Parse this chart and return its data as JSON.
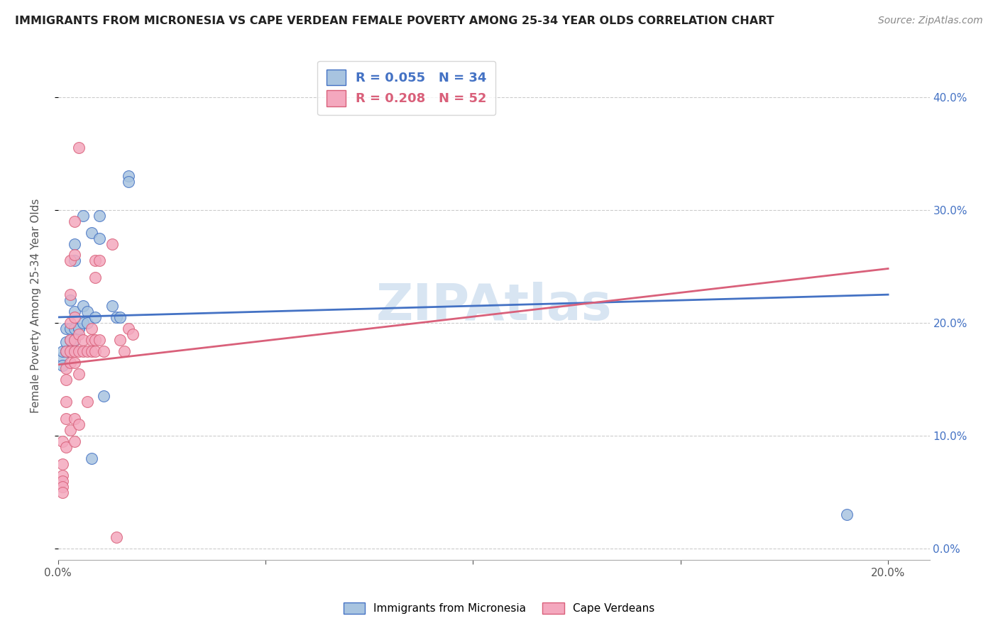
{
  "title": "IMMIGRANTS FROM MICRONESIA VS CAPE VERDEAN FEMALE POVERTY AMONG 25-34 YEAR OLDS CORRELATION CHART",
  "source": "Source: ZipAtlas.com",
  "ylabel": "Female Poverty Among 25-34 Year Olds",
  "xlim": [
    0.0,
    0.21
  ],
  "ylim": [
    -0.01,
    0.44
  ],
  "y_ticks": [
    0.0,
    0.1,
    0.2,
    0.3,
    0.4
  ],
  "blue_label": "Immigrants from Micronesia",
  "pink_label": "Cape Verdeans",
  "blue_R": 0.055,
  "blue_N": 34,
  "pink_R": 0.208,
  "pink_N": 52,
  "blue_color": "#a8c4e0",
  "pink_color": "#f4a8be",
  "blue_line_color": "#4472c4",
  "pink_line_color": "#d9607a",
  "watermark": "ZIPAtlas",
  "blue_line": [
    [
      0.0,
      0.205
    ],
    [
      0.2,
      0.225
    ]
  ],
  "pink_line": [
    [
      0.0,
      0.163
    ],
    [
      0.2,
      0.248
    ]
  ],
  "blue_points": [
    [
      0.001,
      0.17
    ],
    [
      0.001,
      0.162
    ],
    [
      0.001,
      0.175
    ],
    [
      0.002,
      0.195
    ],
    [
      0.002,
      0.183
    ],
    [
      0.002,
      0.175
    ],
    [
      0.003,
      0.22
    ],
    [
      0.003,
      0.195
    ],
    [
      0.003,
      0.185
    ],
    [
      0.004,
      0.27
    ],
    [
      0.004,
      0.255
    ],
    [
      0.004,
      0.21
    ],
    [
      0.004,
      0.195
    ],
    [
      0.004,
      0.185
    ],
    [
      0.004,
      0.185
    ],
    [
      0.005,
      0.195
    ],
    [
      0.005,
      0.195
    ],
    [
      0.006,
      0.295
    ],
    [
      0.006,
      0.215
    ],
    [
      0.006,
      0.2
    ],
    [
      0.007,
      0.21
    ],
    [
      0.007,
      0.2
    ],
    [
      0.008,
      0.28
    ],
    [
      0.008,
      0.08
    ],
    [
      0.009,
      0.205
    ],
    [
      0.01,
      0.295
    ],
    [
      0.01,
      0.275
    ],
    [
      0.011,
      0.135
    ],
    [
      0.013,
      0.215
    ],
    [
      0.014,
      0.205
    ],
    [
      0.015,
      0.205
    ],
    [
      0.017,
      0.33
    ],
    [
      0.017,
      0.325
    ],
    [
      0.19,
      0.03
    ]
  ],
  "pink_points": [
    [
      0.001,
      0.095
    ],
    [
      0.001,
      0.075
    ],
    [
      0.001,
      0.065
    ],
    [
      0.001,
      0.06
    ],
    [
      0.001,
      0.055
    ],
    [
      0.001,
      0.05
    ],
    [
      0.002,
      0.175
    ],
    [
      0.002,
      0.16
    ],
    [
      0.002,
      0.15
    ],
    [
      0.002,
      0.13
    ],
    [
      0.002,
      0.115
    ],
    [
      0.002,
      0.09
    ],
    [
      0.003,
      0.255
    ],
    [
      0.003,
      0.225
    ],
    [
      0.003,
      0.2
    ],
    [
      0.003,
      0.185
    ],
    [
      0.003,
      0.175
    ],
    [
      0.003,
      0.165
    ],
    [
      0.003,
      0.105
    ],
    [
      0.004,
      0.29
    ],
    [
      0.004,
      0.26
    ],
    [
      0.004,
      0.205
    ],
    [
      0.004,
      0.185
    ],
    [
      0.004,
      0.175
    ],
    [
      0.004,
      0.165
    ],
    [
      0.004,
      0.115
    ],
    [
      0.004,
      0.095
    ],
    [
      0.005,
      0.355
    ],
    [
      0.005,
      0.19
    ],
    [
      0.005,
      0.175
    ],
    [
      0.005,
      0.155
    ],
    [
      0.005,
      0.11
    ],
    [
      0.006,
      0.185
    ],
    [
      0.006,
      0.175
    ],
    [
      0.007,
      0.175
    ],
    [
      0.007,
      0.13
    ],
    [
      0.008,
      0.195
    ],
    [
      0.008,
      0.185
    ],
    [
      0.008,
      0.175
    ],
    [
      0.009,
      0.255
    ],
    [
      0.009,
      0.24
    ],
    [
      0.009,
      0.185
    ],
    [
      0.009,
      0.175
    ],
    [
      0.01,
      0.255
    ],
    [
      0.01,
      0.185
    ],
    [
      0.011,
      0.175
    ],
    [
      0.013,
      0.27
    ],
    [
      0.014,
      0.01
    ],
    [
      0.015,
      0.185
    ],
    [
      0.016,
      0.175
    ],
    [
      0.017,
      0.195
    ],
    [
      0.018,
      0.19
    ]
  ]
}
